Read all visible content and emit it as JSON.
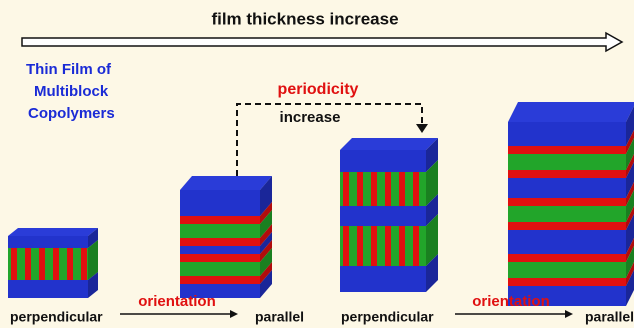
{
  "header": {
    "title": "film thickness increase"
  },
  "side_title": {
    "lines": [
      "Thin Film of",
      "Multiblock",
      "Copolymers"
    ]
  },
  "periodicity": {
    "label": "periodicity",
    "sub_label": "increase"
  },
  "bottom_labels": {
    "items": [
      "perpendicular",
      "orientation",
      "parallel",
      "perpendicular",
      "orientation",
      "parallel"
    ]
  }
}
